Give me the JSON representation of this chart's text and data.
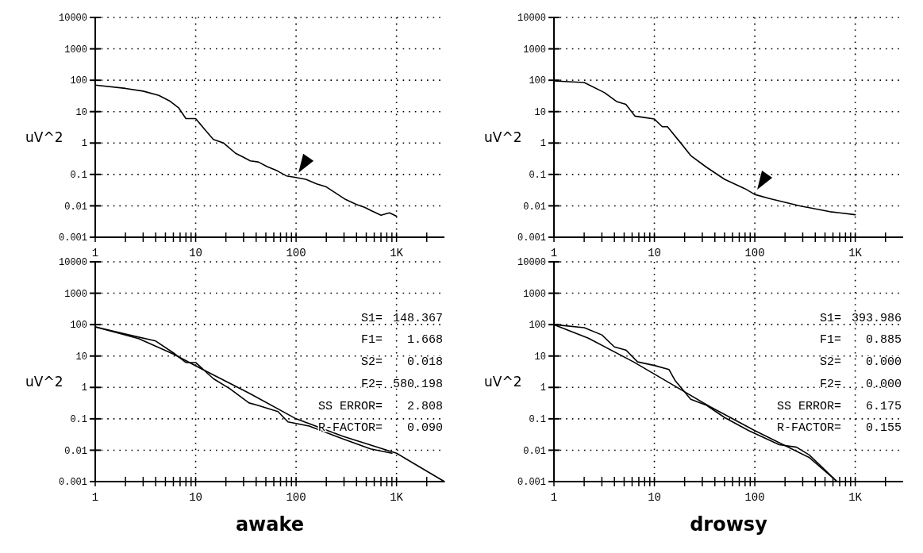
{
  "chart_data": [
    {
      "type": "line",
      "ylabel": "uV^2",
      "log": "xy",
      "grid": true,
      "line_style": "solid",
      "xlim": [
        1,
        3000
      ],
      "ylim": [
        0.001,
        10000
      ],
      "xticks": [
        1,
        {
          "value": 2,
          "label": null
        },
        {
          "value": 3,
          "label": null
        },
        {
          "value": 4,
          "label": null
        },
        {
          "value": 5,
          "label": null
        },
        {
          "value": 6,
          "label": null
        },
        {
          "value": 7,
          "label": null
        },
        {
          "value": 8,
          "label": null
        },
        {
          "value": 9,
          "label": null
        },
        10,
        {
          "value": 20,
          "label": null
        },
        {
          "value": 30,
          "label": null
        },
        {
          "value": 40,
          "label": null
        },
        {
          "value": 50,
          "label": null
        },
        {
          "value": 60,
          "label": null
        },
        {
          "value": 70,
          "label": null
        },
        {
          "value": 80,
          "label": null
        },
        {
          "value": 90,
          "label": null
        },
        100,
        {
          "value": 200,
          "label": null
        },
        {
          "value": 300,
          "label": null
        },
        {
          "value": 400,
          "label": null
        },
        {
          "value": 500,
          "label": null
        },
        {
          "value": 600,
          "label": null
        },
        {
          "value": 700,
          "label": null
        },
        {
          "value": 800,
          "label": null
        },
        {
          "value": 900,
          "label": null
        },
        {
          "value": 1000,
          "label": "1K"
        },
        {
          "value": 2000,
          "label": null
        }
      ],
      "yticks": [
        0.001,
        0.01,
        0.1,
        1,
        10,
        100,
        1000,
        10000
      ],
      "series": [
        {
          "color": "#000000",
          "x": [
            1,
            2,
            3,
            4.3,
            5.5,
            6.8,
            8,
            10,
            12,
            15,
            19,
            25,
            30,
            35,
            42,
            51,
            65,
            80,
            100,
            125,
            160,
            200,
            250,
            310,
            400,
            480,
            560,
            700,
            850,
            1000
          ],
          "values": [
            70,
            55,
            45,
            33,
            22,
            13,
            6,
            6,
            3,
            1.3,
            1,
            0.47,
            0.35,
            0.27,
            0.25,
            0.18,
            0.13,
            0.09,
            0.08,
            0.07,
            0.05,
            0.04,
            0.025,
            0.016,
            0.011,
            0.009,
            0.007,
            0.005,
            0.006,
            0.0047
          ]
        }
      ]
    },
    {
      "type": "line",
      "ylabel": "uV^2",
      "log": "xy",
      "grid": true,
      "line_style": "solid",
      "xlim": [
        1,
        3000
      ],
      "ylim": [
        0.001,
        10000
      ],
      "xticks": [
        1,
        {
          "value": 2,
          "label": null
        },
        {
          "value": 3,
          "label": null
        },
        {
          "value": 4,
          "label": null
        },
        {
          "value": 5,
          "label": null
        },
        {
          "value": 6,
          "label": null
        },
        {
          "value": 7,
          "label": null
        },
        {
          "value": 8,
          "label": null
        },
        {
          "value": 9,
          "label": null
        },
        10,
        {
          "value": 20,
          "label": null
        },
        {
          "value": 30,
          "label": null
        },
        {
          "value": 40,
          "label": null
        },
        {
          "value": 50,
          "label": null
        },
        {
          "value": 60,
          "label": null
        },
        {
          "value": 70,
          "label": null
        },
        {
          "value": 80,
          "label": null
        },
        {
          "value": 90,
          "label": null
        },
        100,
        {
          "value": 200,
          "label": null
        },
        {
          "value": 300,
          "label": null
        },
        {
          "value": 400,
          "label": null
        },
        {
          "value": 500,
          "label": null
        },
        {
          "value": 600,
          "label": null
        },
        {
          "value": 700,
          "label": null
        },
        {
          "value": 800,
          "label": null
        },
        {
          "value": 900,
          "label": null
        },
        {
          "value": 1000,
          "label": "1K"
        },
        {
          "value": 2000,
          "label": null
        }
      ],
      "yticks": [
        0.001,
        0.01,
        0.1,
        1,
        10,
        100,
        1000,
        10000
      ],
      "series": [
        {
          "color": "#000000",
          "x": [
            1,
            2,
            3.2,
            4.2,
            5.2,
            6.4,
            8,
            10,
            12,
            13.5,
            18,
            23,
            33,
            50,
            80,
            100,
            140,
            200,
            280,
            400,
            560,
            700,
            1000
          ],
          "values": [
            95,
            85,
            40,
            21,
            17,
            7.2,
            6.5,
            5.8,
            3.3,
            3.3,
            1.07,
            0.4,
            0.17,
            0.07,
            0.035,
            0.023,
            0.017,
            0.013,
            0.01,
            0.008,
            0.0065,
            0.006,
            0.0052
          ]
        }
      ]
    },
    {
      "type": "line",
      "title": "awake",
      "ylabel": "uV^2",
      "log": "xy",
      "grid": true,
      "line_style": "solid",
      "xlim": [
        1,
        3000
      ],
      "ylim": [
        0.001,
        10000
      ],
      "xticks": [
        1,
        {
          "value": 2,
          "label": null
        },
        {
          "value": 3,
          "label": null
        },
        {
          "value": 4,
          "label": null
        },
        {
          "value": 5,
          "label": null
        },
        {
          "value": 6,
          "label": null
        },
        {
          "value": 7,
          "label": null
        },
        {
          "value": 8,
          "label": null
        },
        {
          "value": 9,
          "label": null
        },
        10,
        {
          "value": 20,
          "label": null
        },
        {
          "value": 30,
          "label": null
        },
        {
          "value": 40,
          "label": null
        },
        {
          "value": 50,
          "label": null
        },
        {
          "value": 60,
          "label": null
        },
        {
          "value": 70,
          "label": null
        },
        {
          "value": 80,
          "label": null
        },
        {
          "value": 90,
          "label": null
        },
        100,
        {
          "value": 200,
          "label": null
        },
        {
          "value": 300,
          "label": null
        },
        {
          "value": 400,
          "label": null
        },
        {
          "value": 500,
          "label": null
        },
        {
          "value": 600,
          "label": null
        },
        {
          "value": 700,
          "label": null
        },
        {
          "value": 800,
          "label": null
        },
        {
          "value": 900,
          "label": null
        },
        {
          "value": 1000,
          "label": "1K"
        },
        {
          "value": 2000,
          "label": null
        }
      ],
      "yticks": [
        0.001,
        0.01,
        0.1,
        1,
        10,
        100,
        1000,
        10000
      ],
      "annotations": [
        "S1= 148.367",
        "F1= 1.668",
        "S2= 0.018",
        "F2= 580.198",
        "SS ERROR= 2.808",
        "R-FACTOR= 0.090"
      ],
      "series": [
        {
          "color": "#000000",
          "x": [
            1,
            2.3,
            4,
            6,
            8,
            10,
            15,
            22,
            34,
            40,
            66,
            83,
            135,
            290,
            550,
            900
          ],
          "values": [
            85,
            45,
            30,
            12.6,
            6.2,
            6.2,
            1.9,
            0.9,
            0.32,
            0.28,
            0.17,
            0.08,
            0.059,
            0.023,
            0.011,
            0.008
          ]
        },
        {
          "color": "#000000",
          "x": [
            1,
            2.7,
            6,
            12,
            34,
            100,
            290,
            1000,
            3000
          ],
          "values": [
            85,
            36,
            11.5,
            3.6,
            0.66,
            0.1,
            0.028,
            0.008,
            0.001
          ]
        }
      ]
    },
    {
      "type": "line",
      "title": "drowsy",
      "ylabel": "uV^2",
      "log": "xy",
      "grid": true,
      "line_style": "solid",
      "xlim": [
        1,
        3000
      ],
      "ylim": [
        0.001,
        10000
      ],
      "xticks": [
        1,
        {
          "value": 2,
          "label": null
        },
        {
          "value": 3,
          "label": null
        },
        {
          "value": 4,
          "label": null
        },
        {
          "value": 5,
          "label": null
        },
        {
          "value": 6,
          "label": null
        },
        {
          "value": 7,
          "label": null
        },
        {
          "value": 8,
          "label": null
        },
        {
          "value": 9,
          "label": null
        },
        10,
        {
          "value": 20,
          "label": null
        },
        {
          "value": 30,
          "label": null
        },
        {
          "value": 40,
          "label": null
        },
        {
          "value": 50,
          "label": null
        },
        {
          "value": 60,
          "label": null
        },
        {
          "value": 70,
          "label": null
        },
        {
          "value": 80,
          "label": null
        },
        {
          "value": 90,
          "label": null
        },
        100,
        {
          "value": 200,
          "label": null
        },
        {
          "value": 300,
          "label": null
        },
        {
          "value": 400,
          "label": null
        },
        {
          "value": 500,
          "label": null
        },
        {
          "value": 600,
          "label": null
        },
        {
          "value": 700,
          "label": null
        },
        {
          "value": 800,
          "label": null
        },
        {
          "value": 900,
          "label": null
        },
        {
          "value": 1000,
          "label": "1K"
        },
        {
          "value": 2000,
          "label": null
        }
      ],
      "yticks": [
        0.001,
        0.01,
        0.1,
        1,
        10,
        100,
        1000,
        10000
      ],
      "annotations": [
        "S1= 393.986",
        "F1= 0.885",
        "S2= 0.000",
        "F2= 0.000",
        "SS ERROR= 6.175",
        "R-FACTOR= 0.155"
      ],
      "series": [
        {
          "color": "#000000",
          "x": [
            1,
            2,
            3,
            4,
            5.2,
            6.8,
            10,
            14,
            16,
            23,
            33,
            50,
            87,
            175,
            260,
            350,
            660
          ],
          "values": [
            100,
            80,
            47,
            19.5,
            15.5,
            6.5,
            5,
            3.7,
            1.7,
            0.42,
            0.27,
            0.11,
            0.042,
            0.015,
            0.0125,
            0.007,
            0.001
          ]
        },
        {
          "color": "#000000",
          "x": [
            1,
            2.2,
            6.2,
            16,
            36,
            100,
            350,
            660
          ],
          "values": [
            100,
            37,
            6.5,
            1.1,
            0.24,
            0.042,
            0.0058,
            0.001
          ]
        }
      ]
    }
  ]
}
